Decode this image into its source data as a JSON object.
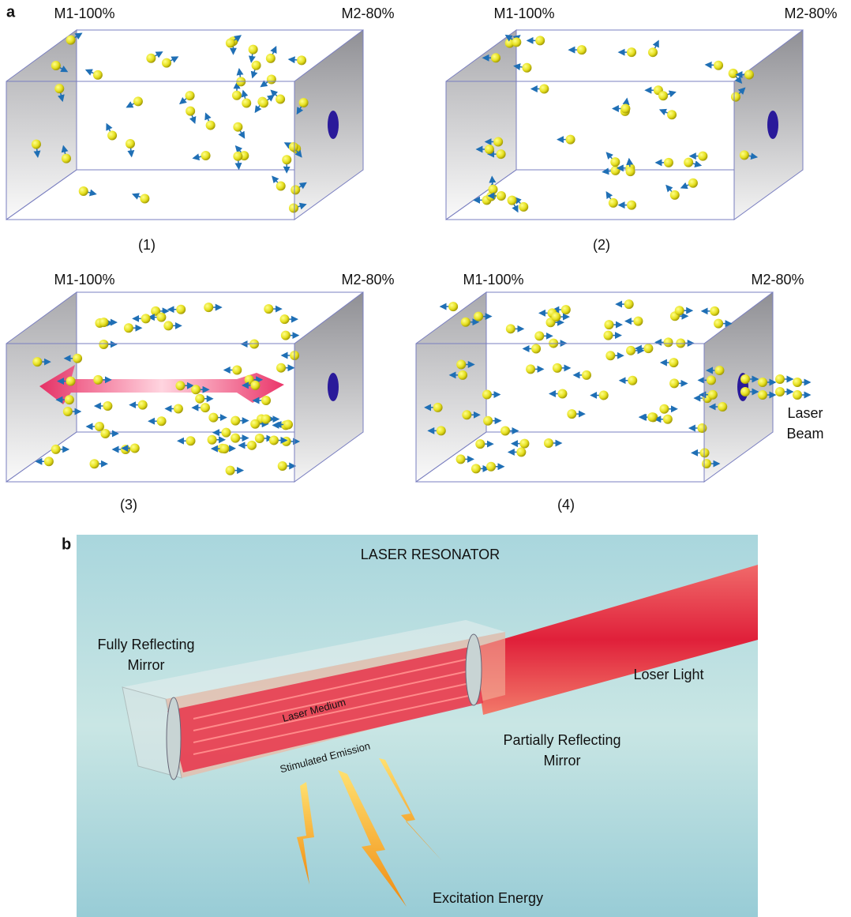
{
  "panel_a": {
    "label": "a",
    "boxes": [
      {
        "left": "M1-100%",
        "right": "M2-80%",
        "caption": "(1)"
      },
      {
        "left": "M1-100%",
        "right": "M2-80%",
        "caption": "(2)"
      },
      {
        "left": "M1-100%",
        "right": "M2-80%",
        "caption": "(3)"
      },
      {
        "left": "M1-100%",
        "right": "M2-80%",
        "caption": "(4)"
      }
    ],
    "beam_label": [
      "Laser",
      "Beam"
    ]
  },
  "panel_b": {
    "label": "b",
    "title": "LASER RESONATOR",
    "fully_reflecting": [
      "Fully Reflecting",
      "Mirror"
    ],
    "output": "Loser Light",
    "medium": "Laser Medium",
    "emission": "Stimulated Emission",
    "partially_reflecting": [
      "Partially Reflecting",
      "Mirror"
    ],
    "excitation": "Excitation Energy"
  }
}
